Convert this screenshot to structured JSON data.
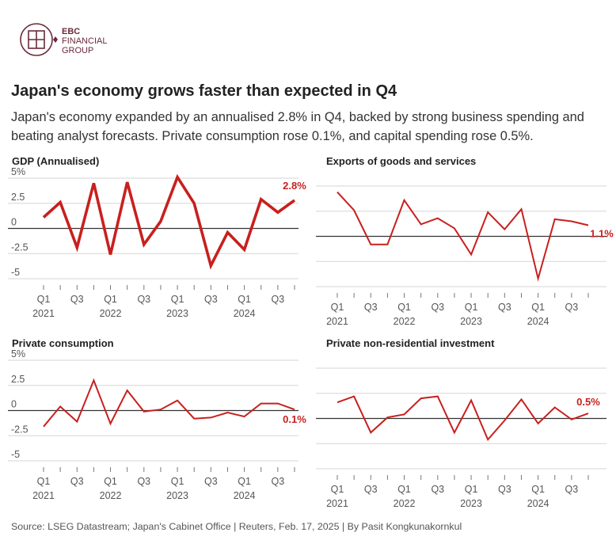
{
  "brand": {
    "line1": "EBC",
    "line2": "FINANCIAL",
    "line3": "GROUP"
  },
  "header": {
    "title": "Japan's economy grows faster than expected in Q4",
    "subtitle": "Japan's economy expanded by an annualised 2.8% in Q4, backed by strong business spending and beating analyst forecasts. Private consumption rose 0.1%, and capital spending rose 0.5%."
  },
  "footer": {
    "source": "Source: LSEG Datastream; Japan's Cabinet Office | Reuters, Feb. 17, 2025 | By Pasit Kongkunakornkul"
  },
  "colors": {
    "line": "#c8201e",
    "grid": "#d6d6d6",
    "zero": "#333333"
  },
  "chart_data": [
    {
      "type": "line",
      "title": "GDP (Annualised)",
      "x": [
        "2021 Q1",
        "2021 Q2",
        "2021 Q3",
        "2021 Q4",
        "2022 Q1",
        "2022 Q2",
        "2022 Q3",
        "2022 Q4",
        "2023 Q1",
        "2023 Q2",
        "2023 Q3",
        "2023 Q4",
        "2024 Q1",
        "2024 Q2",
        "2024 Q3",
        "2024 Q4"
      ],
      "values": [
        1.1,
        2.6,
        -1.9,
        4.5,
        -2.6,
        4.6,
        -1.6,
        0.7,
        5.1,
        2.5,
        -3.7,
        -0.4,
        -2.1,
        2.9,
        1.6,
        2.8
      ],
      "ylim": [
        -5,
        5
      ],
      "yticks": [
        "5%",
        "2.5",
        "0",
        "-2.5",
        "-5"
      ],
      "xticks": [
        "Q1",
        "Q3",
        "Q1",
        "Q3",
        "Q1",
        "Q3",
        "Q1",
        "Q3"
      ],
      "years": [
        "2021",
        "2022",
        "2023",
        "2024"
      ],
      "end_label": "2.8%",
      "line_width": "thick"
    },
    {
      "type": "line",
      "title": "Exports of goods and services",
      "x": [
        "2021 Q1",
        "2021 Q2",
        "2021 Q3",
        "2021 Q4",
        "2022 Q1",
        "2022 Q2",
        "2022 Q3",
        "2022 Q4",
        "2023 Q1",
        "2023 Q2",
        "2023 Q3",
        "2023 Q4",
        "2024 Q1",
        "2024 Q2",
        "2024 Q3",
        "2024 Q4"
      ],
      "values": [
        4.4,
        2.6,
        -0.8,
        -0.8,
        3.6,
        1.2,
        1.8,
        0.8,
        -1.8,
        2.4,
        0.7,
        2.7,
        -4.2,
        1.7,
        1.5,
        1.1
      ],
      "ylim": [
        -5,
        5
      ],
      "end_label": "1.1%",
      "line_width": "thin"
    },
    {
      "type": "line",
      "title": "Private consumption",
      "x": [
        "2021 Q1",
        "2021 Q2",
        "2021 Q3",
        "2021 Q4",
        "2022 Q1",
        "2022 Q2",
        "2022 Q3",
        "2022 Q4",
        "2023 Q1",
        "2023 Q2",
        "2023 Q3",
        "2023 Q4",
        "2024 Q1",
        "2024 Q2",
        "2024 Q3",
        "2024 Q4"
      ],
      "values": [
        -1.6,
        0.4,
        -1.1,
        3.0,
        -1.3,
        2.0,
        -0.1,
        0.1,
        1.0,
        -0.8,
        -0.7,
        -0.2,
        -0.6,
        0.7,
        0.7,
        0.1
      ],
      "ylim": [
        -5,
        5
      ],
      "yticks": [
        "5%",
        "2.5",
        "0",
        "-2.5",
        "-5"
      ],
      "xticks": [
        "Q1",
        "Q3",
        "Q1",
        "Q3",
        "Q1",
        "Q3",
        "Q1",
        "Q3"
      ],
      "years": [
        "2021",
        "2022",
        "2023",
        "2024"
      ],
      "end_label": "0.1%",
      "line_width": "thin"
    },
    {
      "type": "line",
      "title": "Private non-residential investment",
      "x": [
        "2021 Q1",
        "2021 Q2",
        "2021 Q3",
        "2021 Q4",
        "2022 Q1",
        "2022 Q2",
        "2022 Q3",
        "2022 Q4",
        "2023 Q1",
        "2023 Q2",
        "2023 Q3",
        "2023 Q4",
        "2024 Q1",
        "2024 Q2",
        "2024 Q3",
        "2024 Q4"
      ],
      "values": [
        1.6,
        2.2,
        -1.4,
        0.1,
        0.4,
        2.0,
        2.2,
        -1.4,
        1.8,
        -2.1,
        -0.2,
        1.9,
        -0.5,
        1.1,
        -0.1,
        0.5
      ],
      "ylim": [
        -5,
        5
      ],
      "end_label": "0.5%",
      "line_width": "thin"
    }
  ]
}
